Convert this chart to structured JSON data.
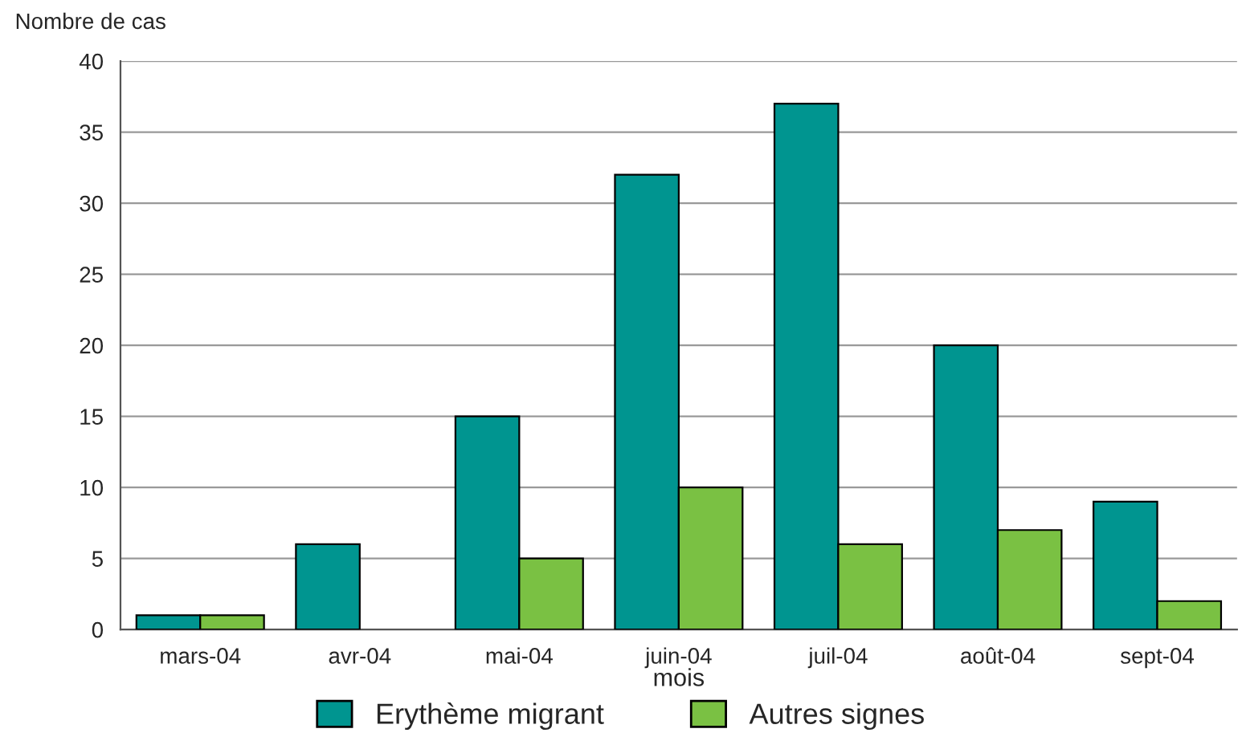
{
  "chart_data": {
    "type": "bar",
    "ylabel": "Nombre de cas",
    "xlabel": "mois",
    "categories": [
      "mars-04",
      "avr-04",
      "mai-04",
      "juin-04",
      "juil-04",
      "août-04",
      "sept-04"
    ],
    "series": [
      {
        "name": "Erythème migrant",
        "color": "#009590",
        "values": [
          1,
          6,
          15,
          32,
          37,
          20,
          9
        ]
      },
      {
        "name": "Autres signes",
        "color": "#7ac143",
        "values": [
          1,
          0,
          5,
          10,
          6,
          7,
          2
        ]
      }
    ],
    "ylim": [
      0,
      40
    ],
    "yticks": [
      0,
      5,
      10,
      15,
      20,
      25,
      30,
      35,
      40
    ],
    "grid": "y",
    "legend": "bottom"
  }
}
